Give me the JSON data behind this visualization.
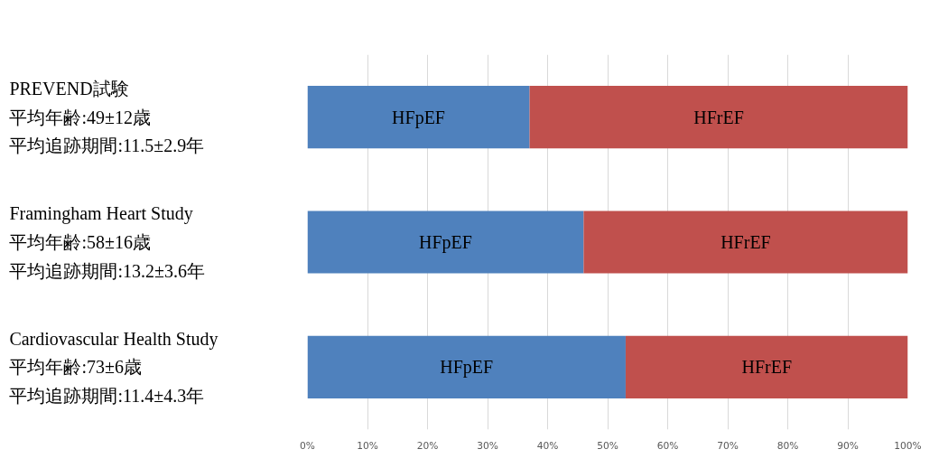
{
  "chart_data": {
    "type": "bar",
    "orientation": "horizontal",
    "stacked": true,
    "categories": [
      "PREVEND試験",
      "Framingham Heart Study",
      "Cardiovascular Health Study"
    ],
    "annotations": [
      "平均年齢:49±12歳",
      "平均追跡期間:11.5±2.9年",
      "平均年齢:58±16歳",
      "平均追跡期間:13.2±3.6年",
      "平均年齢:73±6歳",
      "平均追跡期間:11.4±4.3年"
    ],
    "series": [
      {
        "name": "HFpEF",
        "color": "#4f81bd",
        "values": [
          37,
          46,
          53
        ]
      },
      {
        "name": "HFrEF",
        "color": "#c0504d",
        "values": [
          63,
          54,
          47
        ]
      }
    ],
    "xlim": [
      0,
      100
    ],
    "xticks": [
      {
        "value": 0,
        "label": "0%"
      },
      {
        "value": 10,
        "label": "10%"
      },
      {
        "value": 20,
        "label": "20%"
      },
      {
        "value": 30,
        "label": "30%"
      },
      {
        "value": 40,
        "label": "40%"
      },
      {
        "value": 50,
        "label": "50%"
      },
      {
        "value": 60,
        "label": "60%"
      },
      {
        "value": 70,
        "label": "70%"
      },
      {
        "value": 80,
        "label": "80%"
      },
      {
        "value": 90,
        "label": "90%"
      },
      {
        "value": 100,
        "label": "100%"
      }
    ],
    "grid": "x",
    "legend": false
  }
}
